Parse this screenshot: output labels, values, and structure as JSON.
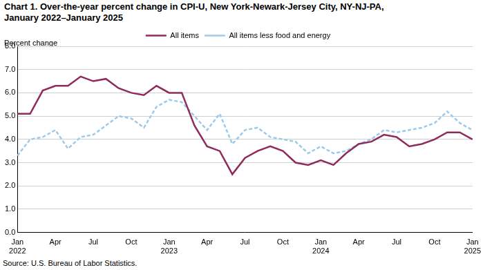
{
  "chart_data": {
    "type": "line",
    "title": [
      "Chart 1. Over-the-year percent change in CPI-U, New York-Newark-Jersey City, NY-NJ-PA,",
      "January 2022–January 2025"
    ],
    "y_label": "Percent change",
    "source": "Source: U.S. Bureau of Labor Statistics.",
    "categories": [
      "Jan 2022",
      null,
      null,
      "Apr",
      null,
      null,
      "Jul",
      null,
      null,
      "Oct",
      null,
      null,
      "Jan 2023",
      null,
      null,
      "Apr",
      null,
      null,
      "Jul",
      null,
      null,
      "Oct",
      null,
      null,
      "Jan 2024",
      null,
      null,
      "Apr",
      null,
      null,
      "Jul",
      null,
      null,
      "Oct",
      null,
      null,
      "Jan 2025"
    ],
    "series": [
      {
        "name": "All items",
        "color": "#8e2b5c",
        "line_style": "solid",
        "marker": "none",
        "values": [
          5.1,
          5.1,
          6.1,
          6.3,
          6.3,
          6.7,
          6.5,
          6.6,
          6.2,
          6.0,
          5.9,
          6.3,
          6.0,
          6.0,
          4.6,
          3.7,
          3.5,
          2.5,
          3.2,
          3.5,
          3.7,
          3.5,
          3.0,
          2.9,
          3.1,
          2.9,
          3.4,
          3.8,
          3.9,
          4.2,
          4.1,
          3.7,
          3.8,
          4.0,
          4.3,
          4.3,
          4.0
        ]
      },
      {
        "name": "All items less food and energy",
        "color": "#9ccaeb",
        "line_style": "dashed",
        "marker": "none",
        "values": [
          3.3,
          4.0,
          4.1,
          4.4,
          3.6,
          4.1,
          4.2,
          4.6,
          5.0,
          4.9,
          4.5,
          5.4,
          5.7,
          5.6,
          5.0,
          4.4,
          5.1,
          3.8,
          4.4,
          4.5,
          4.1,
          4.0,
          3.9,
          3.4,
          3.7,
          3.4,
          3.5,
          3.8,
          4.0,
          4.4,
          4.3,
          4.4,
          4.5,
          4.7,
          5.2,
          4.7,
          4.4
        ]
      }
    ],
    "ylim": [
      0,
      8
    ],
    "yticks": [
      {
        "value": 0,
        "label": "0.0"
      },
      {
        "value": 1,
        "label": "1.0"
      },
      {
        "value": 2,
        "label": "2.0"
      },
      {
        "value": 3,
        "label": "3.0"
      },
      {
        "value": 4,
        "label": "4.0"
      },
      {
        "value": 5,
        "label": "5.0"
      },
      {
        "value": 6,
        "label": "6.0"
      },
      {
        "value": 7,
        "label": "7.0"
      },
      {
        "value": 8,
        "label": "8.0"
      }
    ],
    "grid": true,
    "legend": "top"
  }
}
